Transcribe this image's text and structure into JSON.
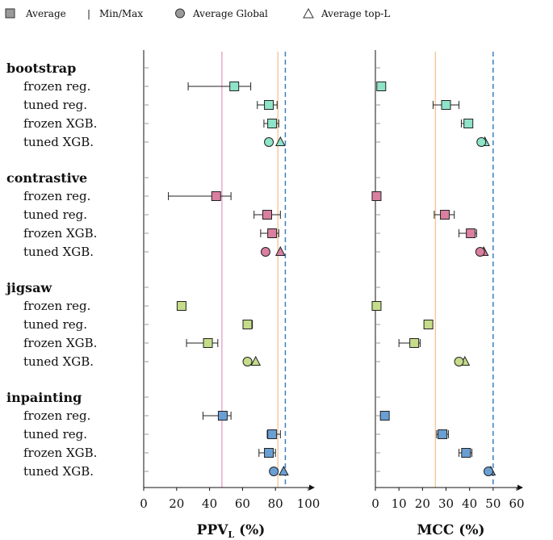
{
  "legend": {
    "average": "Average",
    "minmax": "Min/Max",
    "separator": "|",
    "avg_global": "Average Global",
    "avg_topL": "Average top-L"
  },
  "chart_data": {
    "type": "dot-range",
    "groups": [
      {
        "name": "bootstrap",
        "color": "#8ee3c8"
      },
      {
        "name": "contrastive",
        "color": "#d97fa0"
      },
      {
        "name": "jigsaw",
        "color": "#c5dc8a"
      },
      {
        "name": "inpainting",
        "color": "#6a9fd3"
      }
    ],
    "methods": [
      "frozen reg.",
      "tuned reg.",
      "frozen XGB.",
      "tuned XGB."
    ],
    "panels": [
      {
        "xlabel_main": "PPV",
        "xlabel_sub": "L",
        "xlabel_suffix": "(%)",
        "xlim": [
          0,
          100
        ],
        "ticks": [
          0,
          20,
          40,
          60,
          80,
          100
        ],
        "ref_lines": [
          {
            "value": 47.5,
            "color": "#e6a3c6",
            "style": "solid"
          },
          {
            "value": 81.5,
            "color": "#f5c79b",
            "style": "solid"
          },
          {
            "value": 86,
            "color": "#3a7fc1",
            "style": "dashed"
          }
        ],
        "rows": [
          [
            {
              "avg": 55,
              "min": 27,
              "max": 65
            },
            {
              "avg": 76,
              "min": 69,
              "max": 81
            },
            {
              "avg": 78,
              "min": 73,
              "max": 82
            },
            {
              "global": 76,
              "topL": 83
            }
          ],
          [
            {
              "avg": 44,
              "min": 15,
              "max": 53
            },
            {
              "avg": 75,
              "min": 67,
              "max": 83
            },
            {
              "avg": 78,
              "min": 71,
              "max": 82
            },
            {
              "global": 74,
              "topL": 83
            }
          ],
          [
            {
              "avg": 23,
              "min": 23,
              "max": 23
            },
            {
              "avg": 63,
              "min": 63,
              "max": 66
            },
            {
              "avg": 39,
              "min": 26,
              "max": 45
            },
            {
              "global": 63,
              "topL": 68
            }
          ],
          [
            {
              "avg": 48,
              "min": 36,
              "max": 53
            },
            {
              "avg": 78,
              "min": 75,
              "max": 83
            },
            {
              "avg": 76,
              "min": 70,
              "max": 80
            },
            {
              "global": 79,
              "topL": 85
            }
          ]
        ]
      },
      {
        "xlabel_main": "MCC",
        "xlabel_sub": "",
        "xlabel_suffix": "(%)",
        "xlim": [
          0,
          60
        ],
        "ticks": [
          0,
          10,
          20,
          30,
          40,
          50,
          60
        ],
        "ref_lines": [
          {
            "value": 25.5,
            "color": "#f5c79b",
            "style": "solid"
          },
          {
            "value": 50,
            "color": "#3a7fc1",
            "style": "dashed"
          }
        ],
        "rows": [
          [
            {
              "avg": 2.5,
              "min": 2.5,
              "max": 2.5
            },
            {
              "avg": 30,
              "min": 24.5,
              "max": 35.5
            },
            {
              "avg": 39.5,
              "min": 36.5,
              "max": 41
            },
            {
              "global": 45,
              "topL": 46.5
            }
          ],
          [
            {
              "avg": 0.5,
              "min": 0.5,
              "max": 0.5
            },
            {
              "avg": 29.5,
              "min": 25,
              "max": 33.5
            },
            {
              "avg": 40.5,
              "min": 35.5,
              "max": 43
            },
            {
              "global": 44.5,
              "topL": 46
            }
          ],
          [
            {
              "avg": 0.5,
              "min": 0.5,
              "max": 0.5
            },
            {
              "avg": 22.5,
              "min": 22,
              "max": 24
            },
            {
              "avg": 16.5,
              "min": 10,
              "max": 19
            },
            {
              "global": 35.5,
              "topL": 38
            }
          ],
          [
            {
              "avg": 4,
              "min": 4,
              "max": 4
            },
            {
              "avg": 28.5,
              "min": 26,
              "max": 31
            },
            {
              "avg": 38.5,
              "min": 35.5,
              "max": 41
            },
            {
              "global": 48,
              "topL": 49
            }
          ]
        ]
      }
    ]
  }
}
